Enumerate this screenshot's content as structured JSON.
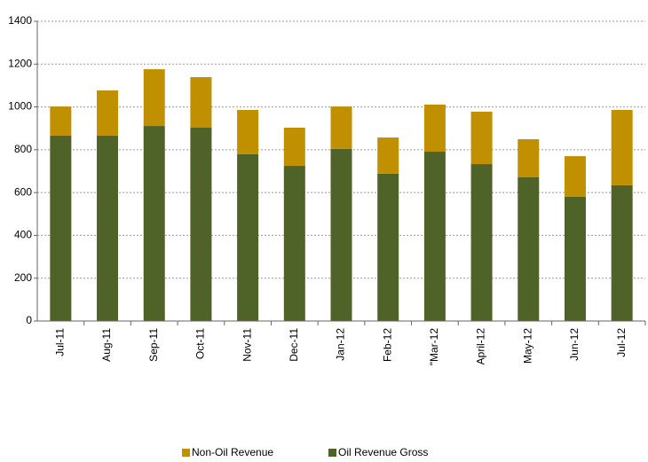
{
  "chart_data": {
    "type": "stacked_bar",
    "categories": [
      "Jul-11",
      "Aug-11",
      "Sep-11",
      "Oct-11",
      "Nov-11",
      "Dec-11",
      "Jan-12",
      "Feb-12",
      "\"Mar-12",
      "April-12",
      "May-12",
      "Jun-12",
      "Jul-12"
    ],
    "series": [
      {
        "name": "Non-Oil Revenue",
        "color": "#c09000",
        "values": [
          136,
          211,
          265,
          236,
          207,
          178,
          198,
          169,
          220,
          245,
          178,
          190,
          352
        ]
      },
      {
        "name": "Oil Revenue Gross",
        "color": "#4f6228",
        "values": [
          866,
          866,
          911,
          903,
          779,
          725,
          804,
          688,
          791,
          733,
          671,
          580,
          634
        ]
      }
    ],
    "ylim": [
      0,
      1400
    ],
    "yticks": [
      0,
      200,
      400,
      600,
      800,
      1000,
      1200,
      1400
    ],
    "grid": true,
    "legend": "bottom"
  }
}
